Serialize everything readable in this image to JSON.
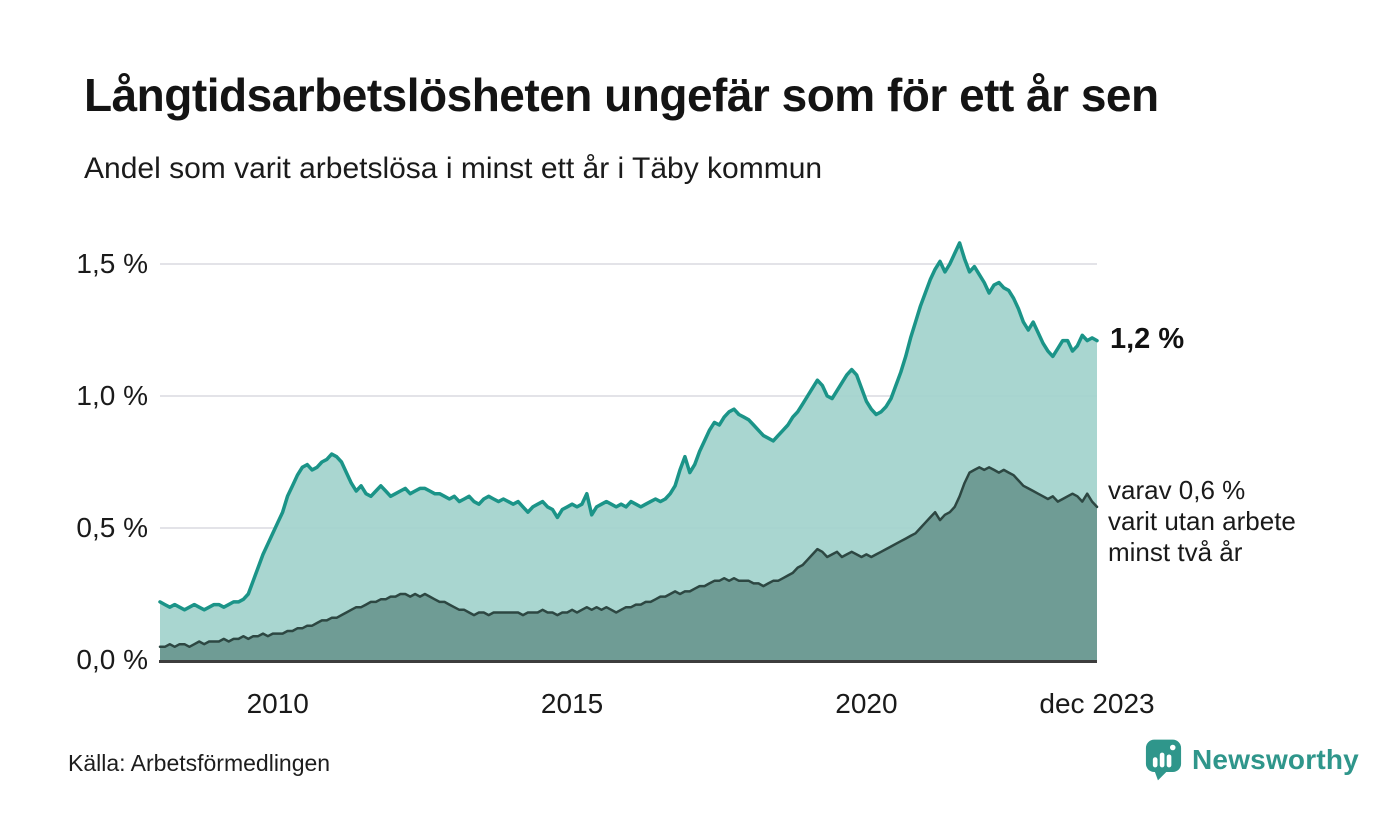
{
  "header": {
    "title": "Långtidsarbetslösheten ungefär som för ett år sen",
    "subtitle": "Andel som varit arbetslösa i minst ett år i Täby kommun"
  },
  "chart_data": {
    "type": "area",
    "title": "Långtidsarbetslösheten ungefär som för ett år sen",
    "subtitle": "Andel som varit arbetslösa i minst ett år i Täby kommun",
    "unit": "%",
    "frequency": "monthly",
    "x_start": "jan 2008",
    "x_end": "dec 2023",
    "ylim": [
      0,
      1.65
    ],
    "grid": "horizontal",
    "y_ticks": [
      {
        "label": "1,5 %",
        "value": 1.5
      },
      {
        "label": "1,0 %",
        "value": 1.0
      },
      {
        "label": "0,5 %",
        "value": 0.5
      },
      {
        "label": "0,0 %",
        "value": 0.0
      }
    ],
    "x_ticks": [
      {
        "label": "2010",
        "month_index": 24
      },
      {
        "label": "2015",
        "month_index": 84
      },
      {
        "label": "2020",
        "month_index": 144
      },
      {
        "label": "dec 2023",
        "month_index": 191
      }
    ],
    "series": [
      {
        "name": "Arbetslösa minst ett år",
        "line_color": "#1b9488",
        "fill_color": "#a2d3cc",
        "values": [
          0.22,
          0.21,
          0.2,
          0.21,
          0.2,
          0.19,
          0.2,
          0.21,
          0.2,
          0.19,
          0.2,
          0.21,
          0.21,
          0.2,
          0.21,
          0.22,
          0.22,
          0.23,
          0.25,
          0.3,
          0.35,
          0.4,
          0.44,
          0.48,
          0.52,
          0.56,
          0.62,
          0.66,
          0.7,
          0.73,
          0.74,
          0.72,
          0.73,
          0.75,
          0.76,
          0.78,
          0.77,
          0.75,
          0.71,
          0.67,
          0.64,
          0.66,
          0.63,
          0.62,
          0.64,
          0.66,
          0.64,
          0.62,
          0.63,
          0.64,
          0.65,
          0.63,
          0.64,
          0.65,
          0.65,
          0.64,
          0.63,
          0.63,
          0.62,
          0.61,
          0.62,
          0.6,
          0.61,
          0.62,
          0.6,
          0.59,
          0.61,
          0.62,
          0.61,
          0.6,
          0.61,
          0.6,
          0.59,
          0.6,
          0.58,
          0.56,
          0.58,
          0.59,
          0.6,
          0.58,
          0.57,
          0.54,
          0.57,
          0.58,
          0.59,
          0.58,
          0.59,
          0.63,
          0.55,
          0.58,
          0.59,
          0.6,
          0.59,
          0.58,
          0.59,
          0.58,
          0.6,
          0.59,
          0.58,
          0.59,
          0.6,
          0.61,
          0.6,
          0.61,
          0.63,
          0.66,
          0.72,
          0.77,
          0.71,
          0.74,
          0.79,
          0.83,
          0.87,
          0.9,
          0.89,
          0.92,
          0.94,
          0.95,
          0.93,
          0.92,
          0.91,
          0.89,
          0.87,
          0.85,
          0.84,
          0.83,
          0.85,
          0.87,
          0.89,
          0.92,
          0.94,
          0.97,
          1.0,
          1.03,
          1.06,
          1.04,
          1.0,
          0.99,
          1.02,
          1.05,
          1.08,
          1.1,
          1.08,
          1.03,
          0.98,
          0.95,
          0.93,
          0.94,
          0.96,
          0.99,
          1.04,
          1.09,
          1.15,
          1.22,
          1.28,
          1.34,
          1.39,
          1.44,
          1.48,
          1.51,
          1.47,
          1.5,
          1.54,
          1.58,
          1.52,
          1.47,
          1.49,
          1.46,
          1.43,
          1.39,
          1.42,
          1.43,
          1.41,
          1.4,
          1.37,
          1.33,
          1.28,
          1.25,
          1.28,
          1.24,
          1.2,
          1.17,
          1.15,
          1.18,
          1.21,
          1.21,
          1.17,
          1.19,
          1.23,
          1.21,
          1.22,
          1.21
        ]
      },
      {
        "name": "Arbetslösa minst två år",
        "line_color": "#2d4742",
        "fill_color": "#6f9c95",
        "values": [
          0.05,
          0.05,
          0.06,
          0.05,
          0.06,
          0.06,
          0.05,
          0.06,
          0.07,
          0.06,
          0.07,
          0.07,
          0.07,
          0.08,
          0.07,
          0.08,
          0.08,
          0.09,
          0.08,
          0.09,
          0.09,
          0.1,
          0.09,
          0.1,
          0.1,
          0.1,
          0.11,
          0.11,
          0.12,
          0.12,
          0.13,
          0.13,
          0.14,
          0.15,
          0.15,
          0.16,
          0.16,
          0.17,
          0.18,
          0.19,
          0.2,
          0.2,
          0.21,
          0.22,
          0.22,
          0.23,
          0.23,
          0.24,
          0.24,
          0.25,
          0.25,
          0.24,
          0.25,
          0.24,
          0.25,
          0.24,
          0.23,
          0.22,
          0.22,
          0.21,
          0.2,
          0.19,
          0.19,
          0.18,
          0.17,
          0.18,
          0.18,
          0.17,
          0.18,
          0.18,
          0.18,
          0.18,
          0.18,
          0.18,
          0.17,
          0.18,
          0.18,
          0.18,
          0.19,
          0.18,
          0.18,
          0.17,
          0.18,
          0.18,
          0.19,
          0.18,
          0.19,
          0.2,
          0.19,
          0.2,
          0.19,
          0.2,
          0.19,
          0.18,
          0.19,
          0.2,
          0.2,
          0.21,
          0.21,
          0.22,
          0.22,
          0.23,
          0.24,
          0.24,
          0.25,
          0.26,
          0.25,
          0.26,
          0.26,
          0.27,
          0.28,
          0.28,
          0.29,
          0.3,
          0.3,
          0.31,
          0.3,
          0.31,
          0.3,
          0.3,
          0.3,
          0.29,
          0.29,
          0.28,
          0.29,
          0.3,
          0.3,
          0.31,
          0.32,
          0.33,
          0.35,
          0.36,
          0.38,
          0.4,
          0.42,
          0.41,
          0.39,
          0.4,
          0.41,
          0.39,
          0.4,
          0.41,
          0.4,
          0.39,
          0.4,
          0.39,
          0.4,
          0.41,
          0.42,
          0.43,
          0.44,
          0.45,
          0.46,
          0.47,
          0.48,
          0.5,
          0.52,
          0.54,
          0.56,
          0.53,
          0.55,
          0.56,
          0.58,
          0.62,
          0.67,
          0.71,
          0.72,
          0.73,
          0.72,
          0.73,
          0.72,
          0.71,
          0.72,
          0.71,
          0.7,
          0.68,
          0.66,
          0.65,
          0.64,
          0.63,
          0.62,
          0.61,
          0.62,
          0.6,
          0.61,
          0.62,
          0.63,
          0.62,
          0.6,
          0.63,
          0.6,
          0.58
        ]
      }
    ],
    "annotations": [
      {
        "text": "1,2 %",
        "series": 0,
        "bold": true
      },
      {
        "lines": [
          "varav 0,6 %",
          "varit utan arbete",
          "minst två år"
        ],
        "series": 1
      }
    ],
    "colors": {
      "gridline": "#e3e3e8",
      "baseline": "#3d3d3d",
      "line_total": "#1b9488",
      "fill_total": "#a2d3cc",
      "line_two_years": "#2d4742",
      "fill_two_years": "#6f9c95"
    }
  },
  "footer": {
    "source": "Källa: Arbetsförmedlingen",
    "brand": "Newsworthy"
  }
}
